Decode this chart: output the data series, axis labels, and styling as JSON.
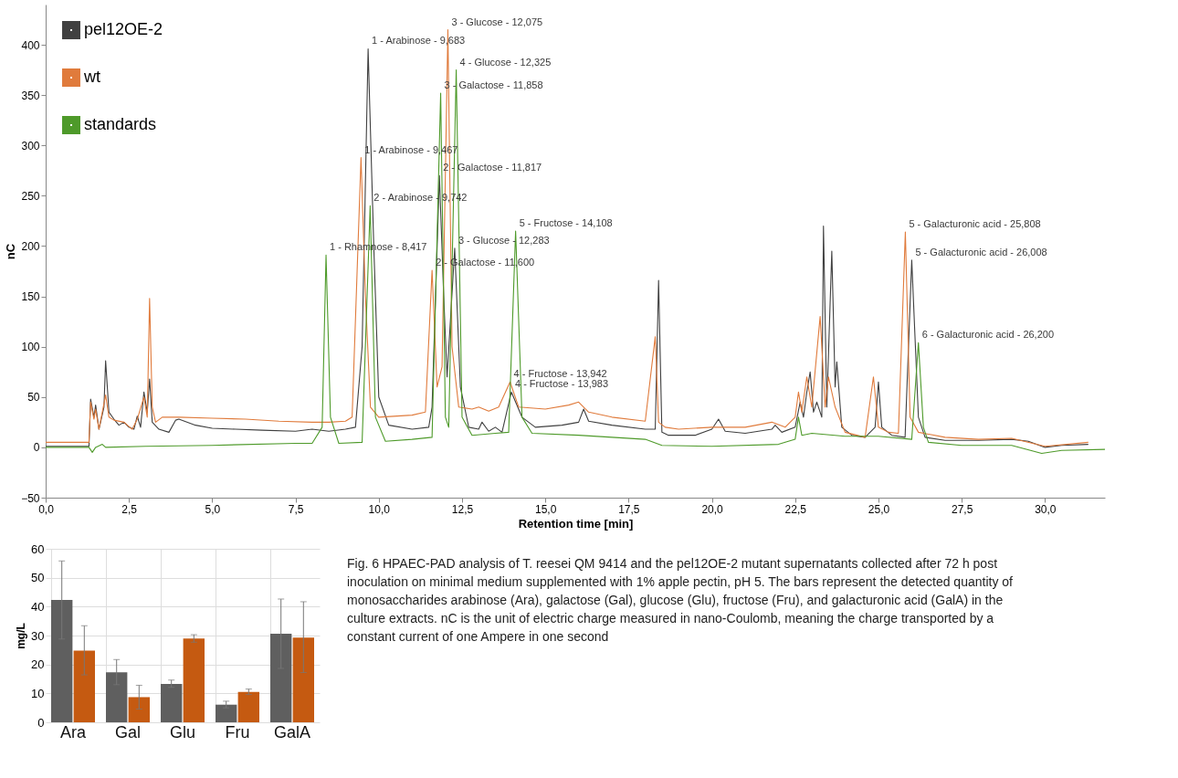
{
  "chart_data": [
    {
      "type": "line",
      "xlabel": "Retention time [min]",
      "ylabel": "nC",
      "xlim": [
        0,
        31.8
      ],
      "ylim": [
        -50,
        440
      ],
      "xticks": [
        {
          "value": 0,
          "label": "0,0"
        },
        {
          "value": 2.5,
          "label": "2,5"
        },
        {
          "value": 5,
          "label": "5,0"
        },
        {
          "value": 7.5,
          "label": "7,5"
        },
        {
          "value": 10,
          "label": "10,0"
        },
        {
          "value": 12.5,
          "label": "12,5"
        },
        {
          "value": 15,
          "label": "15,0"
        },
        {
          "value": 17.5,
          "label": "17,5"
        },
        {
          "value": 20,
          "label": "20,0"
        },
        {
          "value": 22.5,
          "label": "22,5"
        },
        {
          "value": 25,
          "label": "25,0"
        },
        {
          "value": 27.5,
          "label": "27,5"
        },
        {
          "value": 30,
          "label": "30,0"
        }
      ],
      "yticks": [
        -50,
        0,
        50,
        100,
        150,
        200,
        250,
        300,
        350,
        400
      ],
      "legend": "top left",
      "marker": "none",
      "line_style": "solid",
      "series": [
        {
          "name": "pel12OE-2",
          "color": "#404040",
          "x": [
            0,
            1.3,
            1.35,
            1.45,
            1.5,
            1.6,
            1.75,
            1.8,
            1.9,
            2.05,
            2.2,
            2.35,
            2.5,
            2.65,
            2.75,
            2.85,
            2.95,
            3.05,
            3.12,
            3.2,
            3.4,
            3.7,
            3.9,
            4.0,
            4.5,
            5.0,
            5.7,
            6.5,
            7.5,
            8.0,
            8.5,
            9.0,
            9.3,
            9.5,
            9.68,
            9.85,
            10.0,
            10.3,
            11.0,
            11.5,
            11.6,
            11.82,
            11.95,
            12.05,
            12.28,
            12.45,
            12.7,
            13.0,
            13.1,
            13.3,
            13.5,
            13.7,
            13.98,
            14.3,
            14.7,
            15.5,
            16.0,
            16.15,
            16.3,
            17.0,
            18.0,
            18.3,
            18.4,
            18.5,
            18.7,
            19.5,
            20.0,
            20.2,
            20.4,
            21.0,
            21.8,
            21.9,
            22.1,
            22.5,
            22.65,
            22.75,
            22.85,
            22.95,
            23.05,
            23.15,
            23.3,
            23.35,
            23.45,
            23.6,
            23.7,
            23.75,
            23.9,
            24.2,
            24.6,
            24.9,
            25.0,
            25.1,
            25.4,
            25.8,
            26.0,
            26.2,
            26.4,
            27.0,
            28.0,
            29.0,
            29.5,
            30.0,
            30.5,
            31.3
          ],
          "values": [
            1,
            1,
            48,
            30,
            42,
            18,
            40,
            86,
            35,
            28,
            22,
            25,
            20,
            18,
            31,
            20,
            55,
            35,
            68,
            25,
            18,
            15,
            27,
            28,
            22,
            19,
            18,
            17,
            16,
            18,
            16,
            18,
            20,
            100,
            396,
            200,
            50,
            22,
            18,
            20,
            40,
            270,
            150,
            70,
            198,
            60,
            20,
            18,
            25,
            16,
            20,
            15,
            55,
            30,
            20,
            22,
            25,
            38,
            26,
            22,
            18,
            18,
            166,
            15,
            12,
            12,
            18,
            28,
            16,
            14,
            18,
            22,
            15,
            20,
            45,
            30,
            55,
            75,
            35,
            45,
            30,
            220,
            40,
            195,
            60,
            85,
            20,
            12,
            10,
            20,
            65,
            20,
            12,
            10,
            186,
            30,
            10,
            7,
            7,
            8,
            6,
            0,
            2,
            3
          ]
        },
        {
          "name": "wt",
          "color": "#e07b3c",
          "x": [
            0,
            1.3,
            1.35,
            1.45,
            1.5,
            1.6,
            1.8,
            1.9,
            2.05,
            2.35,
            2.6,
            2.75,
            2.95,
            3.05,
            3.12,
            3.2,
            3.3,
            3.5,
            4.0,
            5.0,
            6.0,
            7.0,
            8.0,
            8.5,
            9.0,
            9.2,
            9.467,
            9.6,
            9.75,
            10.0,
            11.0,
            11.4,
            11.6,
            11.75,
            11.9,
            12.075,
            12.2,
            12.4,
            12.8,
            13.0,
            13.3,
            13.6,
            13.942,
            14.2,
            15.0,
            15.7,
            16.0,
            16.3,
            17.0,
            18.0,
            18.3,
            18.4,
            18.6,
            19.0,
            20.0,
            21.0,
            21.8,
            22.2,
            22.5,
            22.6,
            22.7,
            22.85,
            23.0,
            23.25,
            23.4,
            23.5,
            23.7,
            24.0,
            24.6,
            24.85,
            25.0,
            25.3,
            25.6,
            25.808,
            25.95,
            26.2,
            27.0,
            28.0,
            29.0,
            30.0,
            31.3
          ],
          "values": [
            5,
            5,
            45,
            28,
            38,
            18,
            52,
            30,
            27,
            25,
            18,
            28,
            50,
            30,
            148,
            40,
            25,
            30,
            30,
            29,
            28,
            26,
            25,
            25,
            26,
            30,
            288,
            150,
            40,
            30,
            32,
            35,
            176,
            60,
            80,
            415,
            100,
            40,
            38,
            40,
            36,
            40,
            65,
            40,
            38,
            42,
            45,
            35,
            30,
            26,
            110,
            25,
            20,
            18,
            20,
            20,
            25,
            20,
            30,
            55,
            35,
            70,
            40,
            130,
            40,
            70,
            40,
            15,
            10,
            70,
            20,
            15,
            14,
            214,
            30,
            15,
            10,
            8,
            9,
            1,
            5
          ]
        },
        {
          "name": "standards",
          "color": "#4e9a2a",
          "x": [
            0,
            1.3,
            1.4,
            1.5,
            1.7,
            1.8,
            3.0,
            5.0,
            7.5,
            8.0,
            8.3,
            8.417,
            8.55,
            8.8,
            9.5,
            9.742,
            9.9,
            10.2,
            11.0,
            11.6,
            11.858,
            12.0,
            12.1,
            12.325,
            12.5,
            12.8,
            13.5,
            13.9,
            14.108,
            14.3,
            14.6,
            16.0,
            17.0,
            18.0,
            18.5,
            20.0,
            22.0,
            22.5,
            22.6,
            22.7,
            23.0,
            24.0,
            25.0,
            26.0,
            26.2,
            26.35,
            26.5,
            27.5,
            29.0,
            29.9,
            30.5,
            31.8
          ],
          "values": [
            0,
            0,
            -5,
            0,
            3,
            0,
            1,
            2,
            4,
            4,
            20,
            191,
            30,
            4,
            5,
            240,
            30,
            6,
            8,
            10,
            352,
            30,
            20,
            375,
            30,
            12,
            14,
            15,
            215,
            30,
            14,
            12,
            10,
            8,
            2,
            1,
            3,
            8,
            30,
            12,
            14,
            11,
            11,
            8,
            104,
            20,
            5,
            2,
            2,
            -6,
            -3,
            -2
          ]
        }
      ],
      "annotations": [
        {
          "text": "3 - Glucose - 12,075",
          "x": 12.075,
          "y": 415
        },
        {
          "text": "1 - Arabinose - 9,683",
          "x": 9.68,
          "y": 396
        },
        {
          "text": "4 - Glucose - 12,325",
          "x": 12.325,
          "y": 375
        },
        {
          "text": "3 - Galactose - 11,858",
          "x": 11.858,
          "y": 352
        },
        {
          "text": "1 - Arabinose - 9,467",
          "x": 9.467,
          "y": 288
        },
        {
          "text": "2 - Galactose - 11,817",
          "x": 11.82,
          "y": 270
        },
        {
          "text": "2 - Arabinose - 9,742",
          "x": 9.742,
          "y": 240
        },
        {
          "text": "5 - Fructose - 14,108",
          "x": 14.108,
          "y": 215
        },
        {
          "text": "1 - Rhamnose - 8,417",
          "x": 8.417,
          "y": 191
        },
        {
          "text": "3 - Glucose - 12,283",
          "x": 12.28,
          "y": 198
        },
        {
          "text": "2 - Galactose - 11,600",
          "x": 11.6,
          "y": 176
        },
        {
          "text": "4 - Fructose - 13,942",
          "x": 13.942,
          "y": 65
        },
        {
          "text": "4 - Fructose - 13,983",
          "x": 13.98,
          "y": 55
        },
        {
          "text": "5 - Galacturonic acid - 25,808",
          "x": 25.808,
          "y": 214
        },
        {
          "text": "5 - Galacturonic acid - 26,008",
          "x": 26.0,
          "y": 186
        },
        {
          "text": "6 - Galacturonic acid - 26,200",
          "x": 26.2,
          "y": 104
        },
        "Fig. 6 HPAEC-PAD analysis of T. reesei QM 9414 and the pel12OE-2 mutant supernatants collected after 72 h post inoculation on minimal medium supplemented with 1% apple pectin, pH 5. The bars represent the detected quantity of monosaccharides arabinose (Ara), galactose (Gal), glucose (Glu), fructose (Fru), and galacturonic acid (GalA) in the culture extracts. nC is the unit of electric charge measured in nano-Coulomb, meaning the charge transported by a constant current of one Ampere in one second"
      ]
    },
    {
      "type": "bar",
      "ylabel": "mg/L",
      "categories": [
        "Ara",
        "Gal",
        "Glu",
        "Fru",
        "GalA"
      ],
      "ylim": [
        0,
        60
      ],
      "yticks": [
        0,
        10,
        20,
        30,
        40,
        50,
        60
      ],
      "grid": true,
      "series": [
        {
          "color": "#5f5f5f",
          "values": [
            42.3,
            17.3,
            13.3,
            6.1,
            30.6
          ],
          "errors": [
            [
              28.8,
              55.8
            ],
            [
              13.0,
              21.7
            ],
            [
              12.1,
              14.6
            ],
            [
              5.0,
              7.3
            ],
            [
              18.6,
              42.6
            ]
          ]
        },
        {
          "color": "#c55a11",
          "values": [
            24.8,
            8.7,
            29.0,
            10.5,
            29.3
          ],
          "errors": [
            [
              16.4,
              33.4
            ],
            [
              4.6,
              12.8
            ],
            [
              27.7,
              30.3
            ],
            [
              9.6,
              11.5
            ],
            [
              17.2,
              41.7
            ]
          ]
        }
      ]
    }
  ]
}
